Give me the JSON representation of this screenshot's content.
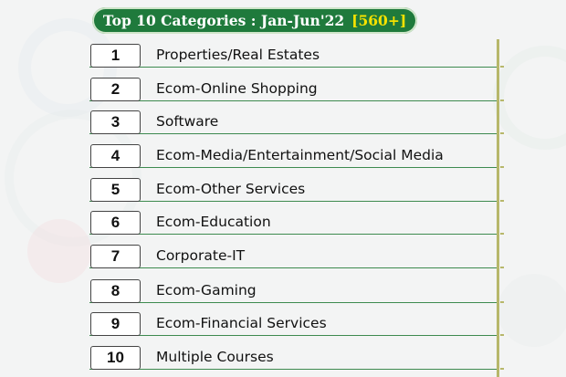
{
  "title": {
    "text": "Top 10 Categories : Jan-Jun'22",
    "count": "[560+]"
  },
  "categories": [
    {
      "rank": "1",
      "label": "Properties/Real Estates"
    },
    {
      "rank": "2",
      "label": "Ecom-Online Shopping"
    },
    {
      "rank": "3",
      "label": "Software"
    },
    {
      "rank": "4",
      "label": "Ecom-Media/Entertainment/Social Media"
    },
    {
      "rank": "5",
      "label": "Ecom-Other Services"
    },
    {
      "rank": "6",
      "label": "Ecom-Education"
    },
    {
      "rank": "7",
      "label": "Corporate-IT"
    },
    {
      "rank": "8",
      "label": "Ecom-Gaming"
    },
    {
      "rank": "9",
      "label": "Ecom-Financial Services"
    },
    {
      "rank": "10",
      "label": "Multiple Courses"
    }
  ],
  "colors": {
    "title_background": "#1f7a3c",
    "title_text": "#ffffff",
    "count_text": "#f5e200",
    "row_underline": "#3d8a4f"
  }
}
